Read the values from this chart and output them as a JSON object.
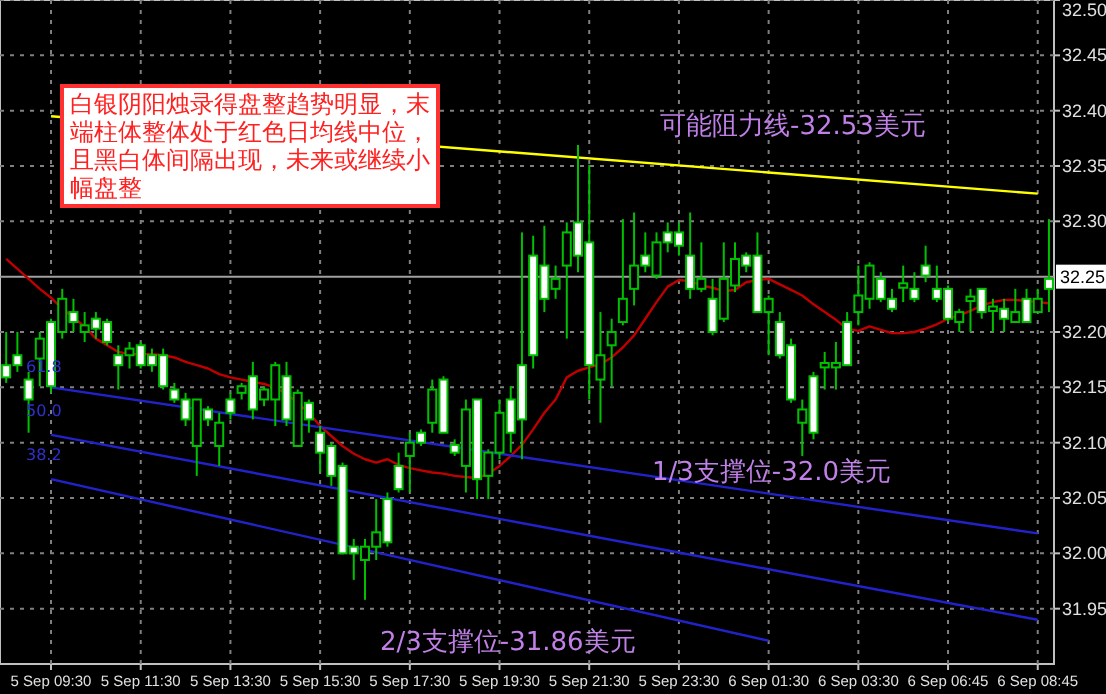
{
  "chart_data": {
    "type": "candlestick",
    "categories": [
      null,
      null,
      null,
      null,
      "5 Sep 09:30",
      null,
      null,
      null,
      null,
      null,
      null,
      null,
      "5 Sep 11:30",
      null,
      null,
      null,
      null,
      null,
      null,
      null,
      "5 Sep 13:30",
      null,
      null,
      null,
      null,
      null,
      null,
      null,
      "5 Sep 15:30",
      null,
      null,
      null,
      null,
      null,
      null,
      null,
      "5 Sep 17:30",
      null,
      null,
      null,
      null,
      null,
      null,
      null,
      "5 Sep 19:30",
      null,
      null,
      null,
      null,
      null,
      null,
      null,
      "5 Sep 21:30",
      null,
      null,
      null,
      null,
      null,
      null,
      null,
      "5 Sep 23:30",
      null,
      null,
      null,
      null,
      null,
      null,
      null,
      "6 Sep 01:30",
      null,
      null,
      null,
      null,
      null,
      null,
      null,
      "6 Sep 03:30",
      null,
      null,
      null,
      null,
      null,
      null,
      null,
      "6 Sep 06:45",
      null,
      null,
      null,
      null,
      null,
      null,
      null,
      "6 Sep 08:45",
      null
    ],
    "ohlc": [
      [
        32.159,
        32.2,
        32.154,
        32.17
      ],
      [
        32.17,
        32.2,
        32.164,
        32.179
      ],
      [
        32.139,
        32.164,
        32.109,
        32.157
      ],
      [
        32.194,
        32.2,
        32.151,
        32.176
      ],
      [
        32.151,
        32.212,
        32.145,
        32.209
      ],
      [
        32.23,
        32.239,
        32.194,
        32.2
      ],
      [
        32.209,
        32.23,
        32.2,
        32.218
      ],
      [
        32.206,
        32.218,
        32.191,
        32.2
      ],
      [
        32.203,
        32.218,
        32.194,
        32.212
      ],
      [
        32.191,
        32.212,
        32.188,
        32.209
      ],
      [
        32.17,
        32.188,
        32.148,
        32.179
      ],
      [
        32.185,
        32.191,
        32.167,
        32.179
      ],
      [
        32.17,
        32.191,
        32.167,
        32.188
      ],
      [
        32.17,
        32.185,
        32.164,
        32.179
      ],
      [
        32.151,
        32.185,
        32.148,
        32.179
      ],
      [
        32.139,
        32.154,
        32.136,
        32.148
      ],
      [
        32.121,
        32.145,
        32.115,
        32.139
      ],
      [
        32.139,
        32.139,
        32.07,
        32.097
      ],
      [
        32.121,
        32.133,
        32.115,
        32.13
      ],
      [
        32.118,
        32.127,
        32.079,
        32.097
      ],
      [
        32.127,
        32.145,
        32.121,
        32.139
      ],
      [
        32.151,
        32.154,
        32.139,
        32.145
      ],
      [
        32.13,
        32.173,
        32.121,
        32.16
      ],
      [
        32.148,
        32.151,
        32.133,
        32.139
      ],
      [
        32.17,
        32.173,
        32.115,
        32.139
      ],
      [
        32.121,
        32.173,
        32.115,
        32.16
      ],
      [
        32.145,
        32.148,
        32.097,
        32.097
      ],
      [
        32.121,
        32.139,
        32.109,
        32.136
      ],
      [
        32.091,
        32.115,
        32.073,
        32.109
      ],
      [
        32.07,
        32.1,
        32.061,
        32.097
      ],
      [
        32.0,
        32.082,
        32.0,
        32.079
      ],
      [
        32.0,
        32.013,
        31.976,
        32.006
      ],
      [
        32.006,
        32.013,
        31.958,
        31.994
      ],
      [
        32.019,
        32.049,
        31.994,
        32.006
      ],
      [
        32.01,
        32.055,
        32.006,
        32.049
      ],
      [
        32.058,
        32.091,
        32.055,
        32.079
      ],
      [
        32.1,
        32.109,
        32.055,
        32.088
      ],
      [
        32.1,
        32.112,
        32.097,
        32.109
      ],
      [
        32.148,
        32.157,
        32.109,
        32.118
      ],
      [
        32.109,
        32.16,
        32.109,
        32.157
      ],
      [
        32.091,
        32.103,
        32.088,
        32.098
      ],
      [
        32.13,
        32.139,
        32.055,
        32.079
      ],
      [
        32.067,
        32.139,
        32.049,
        32.139
      ],
      [
        32.091,
        32.094,
        32.049,
        32.07
      ],
      [
        32.127,
        32.139,
        32.085,
        32.091
      ],
      [
        32.109,
        32.151,
        32.091,
        32.139
      ],
      [
        32.121,
        32.29,
        32.085,
        32.17
      ],
      [
        32.179,
        32.287,
        32.167,
        32.269
      ],
      [
        32.23,
        32.296,
        32.218,
        32.26
      ],
      [
        32.248,
        32.26,
        32.23,
        32.239
      ],
      [
        32.29,
        32.299,
        32.194,
        32.26
      ],
      [
        32.269,
        32.369,
        32.254,
        32.299
      ],
      [
        32.17,
        32.351,
        32.139,
        32.281
      ],
      [
        32.179,
        32.218,
        32.118,
        32.157
      ],
      [
        32.2,
        32.212,
        32.151,
        32.188
      ],
      [
        32.23,
        32.302,
        32.206,
        32.209
      ],
      [
        32.26,
        32.308,
        32.224,
        32.239
      ],
      [
        32.26,
        32.29,
        32.254,
        32.269
      ],
      [
        32.281,
        32.29,
        32.248,
        32.251
      ],
      [
        32.281,
        32.299,
        32.272,
        32.29
      ],
      [
        32.278,
        32.299,
        32.269,
        32.29
      ],
      [
        32.239,
        32.308,
        32.23,
        32.269
      ],
      [
        32.248,
        32.281,
        32.236,
        32.239
      ],
      [
        32.2,
        32.248,
        32.197,
        32.23
      ],
      [
        32.248,
        32.281,
        32.209,
        32.212
      ],
      [
        32.266,
        32.281,
        32.236,
        32.242
      ],
      [
        32.26,
        32.272,
        32.254,
        32.269
      ],
      [
        32.218,
        32.29,
        32.218,
        32.269
      ],
      [
        32.23,
        32.233,
        32.179,
        32.218
      ],
      [
        32.179,
        32.218,
        32.176,
        32.209
      ],
      [
        32.139,
        32.194,
        32.136,
        32.188
      ],
      [
        32.13,
        32.139,
        32.088,
        32.118
      ],
      [
        32.109,
        32.164,
        32.103,
        32.16
      ],
      [
        32.172,
        32.182,
        32.148,
        32.168
      ],
      [
        32.172,
        32.191,
        32.148,
        32.168
      ],
      [
        32.17,
        32.218,
        32.17,
        32.209
      ],
      [
        32.233,
        32.26,
        32.206,
        32.218
      ],
      [
        32.26,
        32.263,
        32.221,
        32.23
      ],
      [
        32.23,
        32.254,
        32.227,
        32.248
      ],
      [
        32.221,
        32.239,
        32.218,
        32.23
      ],
      [
        32.244,
        32.26,
        32.227,
        32.24
      ],
      [
        32.23,
        32.254,
        32.227,
        32.239
      ],
      [
        32.251,
        32.278,
        32.245,
        32.26
      ],
      [
        32.23,
        32.26,
        32.227,
        32.239
      ],
      [
        32.212,
        32.242,
        32.209,
        32.239
      ],
      [
        32.218,
        32.221,
        32.2,
        32.209
      ],
      [
        32.232,
        32.239,
        32.2,
        32.228
      ],
      [
        32.218,
        32.239,
        32.212,
        32.239
      ],
      [
        32.223,
        32.23,
        32.2,
        32.219
      ],
      [
        32.212,
        32.23,
        32.2,
        32.221
      ],
      [
        32.218,
        32.239,
        32.209,
        32.209
      ],
      [
        32.209,
        32.239,
        32.209,
        32.23
      ],
      [
        32.23,
        32.239,
        32.218,
        32.218
      ],
      [
        32.239,
        32.302,
        32.218,
        32.248
      ]
    ],
    "series": [
      {
        "type": "line",
        "color": "#c00000",
        "values": [
          32.266,
          32.257,
          32.248,
          32.239,
          32.231,
          32.221,
          32.213,
          32.205,
          32.194,
          32.188,
          32.182,
          32.18,
          32.18,
          32.18,
          32.179,
          32.177,
          32.173,
          32.17,
          32.167,
          32.162,
          32.159,
          32.157,
          32.155,
          32.153,
          32.15,
          32.144,
          32.136,
          32.127,
          32.115,
          32.106,
          32.097,
          32.09,
          32.085,
          32.082,
          32.085,
          32.08,
          32.077,
          32.075,
          32.073,
          32.072,
          32.07,
          32.069,
          32.068,
          32.072,
          32.079,
          32.088,
          32.098,
          32.112,
          32.127,
          32.139,
          32.159,
          32.165,
          32.168,
          32.171,
          32.177,
          32.186,
          32.197,
          32.212,
          32.227,
          32.241,
          32.247,
          32.246,
          32.242,
          32.24,
          32.237,
          32.238,
          32.245,
          32.247,
          32.248,
          32.243,
          32.238,
          32.233,
          32.225,
          32.218,
          32.211,
          32.203,
          32.201,
          32.205,
          32.202,
          32.199,
          32.199,
          32.2,
          32.203,
          32.207,
          32.212,
          32.215,
          32.219,
          32.224,
          32.227,
          32.229,
          32.229,
          32.228,
          32.227,
          32.226
        ]
      },
      {
        "type": "line",
        "color": "#ffff00",
        "x": [
          "5 Sep 09:30",
          "6 Sep 08:45"
        ],
        "values": [
          32.395,
          32.325
        ]
      },
      {
        "type": "line",
        "color": "#2222cc",
        "x": [
          "5 Sep 09:30",
          "6 Sep 08:45"
        ],
        "values": [
          32.15,
          32.018
        ]
      },
      {
        "type": "line",
        "color": "#2222cc",
        "x": [
          "5 Sep 09:30",
          "6 Sep 08:45"
        ],
        "values": [
          32.107,
          31.94
        ]
      },
      {
        "type": "line",
        "color": "#2222cc",
        "x": [
          "5 Sep 09:30",
          "6 Sep 01:30"
        ],
        "values": [
          32.067,
          31.921
        ]
      }
    ],
    "ylim": [
      31.9,
      32.5
    ],
    "yticks": [
      31.95,
      {
        "value": 32.0,
        "label": "32.00"
      },
      32.05,
      {
        "value": 32.1,
        "label": "32.10"
      },
      32.15,
      {
        "value": 32.2,
        "label": "32.20"
      },
      {
        "value": 32.3,
        "label": "32.30"
      },
      32.35,
      {
        "value": 32.4,
        "label": "32.40"
      },
      32.45,
      {
        "value": 32.5,
        "label": "32.50"
      }
    ],
    "ref_lines": [
      {
        "axis": "y",
        "value": 32.25,
        "label": "32.25",
        "color": "#a0a0a0"
      }
    ],
    "grid": true,
    "annotations": [
      "白银阴阳烛录得盘整趋势明显，末端柱体整体处于红色日均线中位，且黑白体间隔出现，未来或继续小幅盘整",
      "可能阻力线-32.53美元",
      "1/3支撑位-32.0美元",
      "2/3支撑位-31.86美元",
      "61.8",
      "50.0",
      "38.2"
    ]
  }
}
